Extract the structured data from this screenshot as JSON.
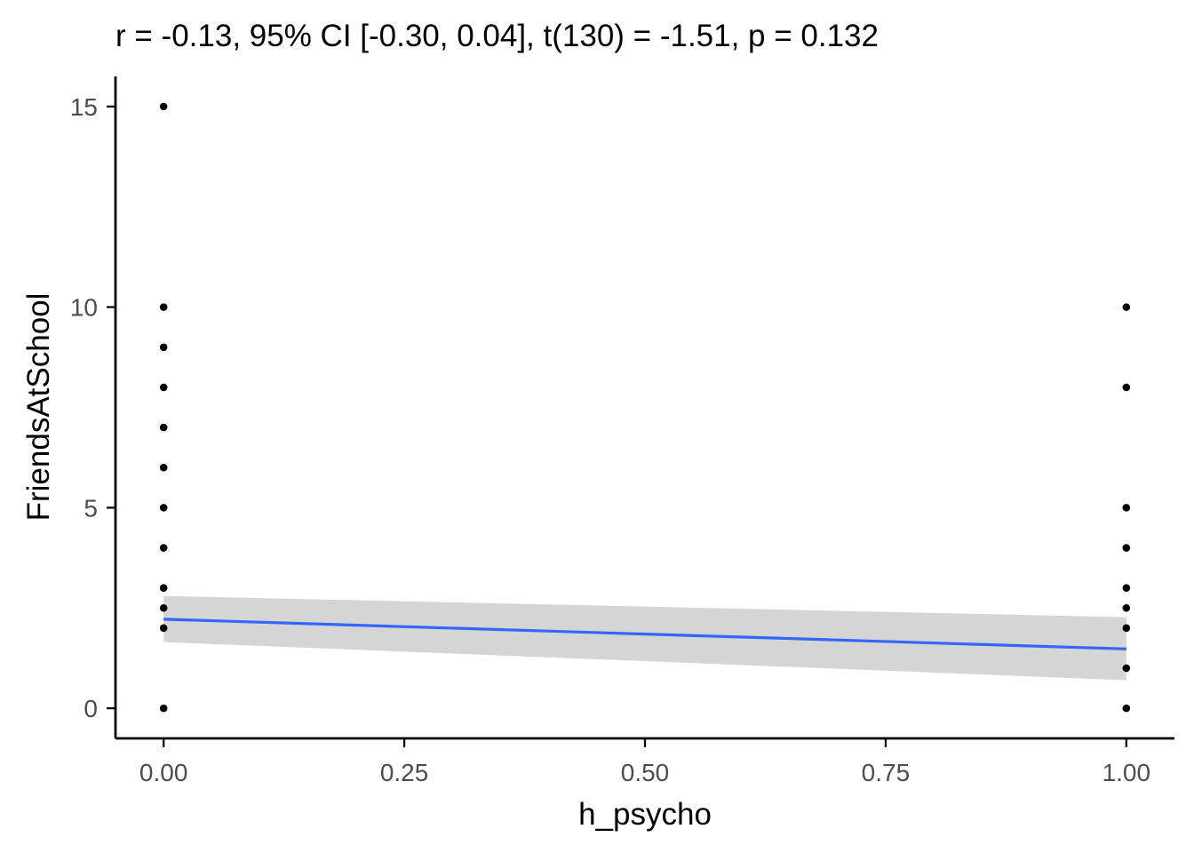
{
  "chart_data": {
    "type": "scatter",
    "title": "r = -0.13, 95% CI [-0.30, 0.04], t(130) = -1.51, p = 0.132",
    "xlabel": "h_psycho",
    "ylabel": "FriendsAtSchool",
    "xlim": [
      -0.05,
      1.05
    ],
    "ylim": [
      -0.75,
      15.75
    ],
    "x_ticks": [
      0,
      0.25,
      0.5,
      0.75,
      1
    ],
    "x_tick_labels": [
      "0.00",
      "0.25",
      "0.50",
      "0.75",
      "1.00"
    ],
    "y_ticks": [
      0,
      5,
      10,
      15
    ],
    "y_tick_labels": [
      "0",
      "5",
      "10",
      "15"
    ],
    "grid": false,
    "legend": "none",
    "points": {
      "x": [
        0,
        0,
        0,
        0,
        0,
        0,
        0,
        0,
        0,
        0,
        0,
        0,
        1,
        1,
        1,
        1,
        1,
        1,
        1,
        1,
        1
      ],
      "y": [
        15,
        10,
        9,
        8,
        7,
        6,
        5,
        4,
        3,
        2.5,
        2,
        0,
        10,
        8,
        5,
        4,
        3,
        2.5,
        2,
        1,
        0
      ]
    },
    "regression": {
      "x": [
        0,
        1
      ],
      "y": [
        2.22,
        1.48
      ],
      "ci_lower": [
        1.65,
        0.7
      ],
      "ci_upper": [
        2.8,
        2.27
      ]
    },
    "colors": {
      "points": "#000000",
      "line": "#3366FF",
      "ci_band": "#D3D3D3",
      "axis": "#000000",
      "tick_label": "#4d4d4d"
    }
  }
}
